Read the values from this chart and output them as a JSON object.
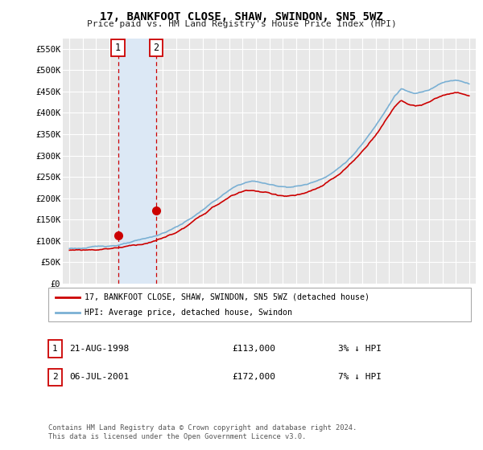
{
  "title": "17, BANKFOOT CLOSE, SHAW, SWINDON, SN5 5WZ",
  "subtitle": "Price paid vs. HM Land Registry's House Price Index (HPI)",
  "background_color": "#ffffff",
  "plot_bg_color": "#e8e8e8",
  "grid_color": "#ffffff",
  "hpi_color": "#7ab0d4",
  "price_color": "#cc0000",
  "shade_color": "#dce8f5",
  "purchases": [
    {
      "date_num": 1998.65,
      "price": 113000,
      "label": "1"
    },
    {
      "date_num": 2001.51,
      "price": 172000,
      "label": "2"
    }
  ],
  "legend_entries": [
    "17, BANKFOOT CLOSE, SHAW, SWINDON, SN5 5WZ (detached house)",
    "HPI: Average price, detached house, Swindon"
  ],
  "table_rows": [
    {
      "num": "1",
      "date": "21-AUG-1998",
      "price": "£113,000",
      "change": "3% ↓ HPI"
    },
    {
      "num": "2",
      "date": "06-JUL-2001",
      "price": "£172,000",
      "change": "7% ↓ HPI"
    }
  ],
  "footer": "Contains HM Land Registry data © Crown copyright and database right 2024.\nThis data is licensed under the Open Government Licence v3.0.",
  "ylim": [
    0,
    575000
  ],
  "xlim": [
    1994.5,
    2025.5
  ],
  "yticks": [
    0,
    50000,
    100000,
    150000,
    200000,
    250000,
    300000,
    350000,
    400000,
    450000,
    500000,
    550000
  ],
  "xticks": [
    1995,
    1996,
    1997,
    1998,
    1999,
    2000,
    2001,
    2002,
    2003,
    2004,
    2005,
    2006,
    2007,
    2008,
    2009,
    2010,
    2011,
    2012,
    2013,
    2014,
    2015,
    2016,
    2017,
    2018,
    2019,
    2020,
    2021,
    2022,
    2023,
    2024,
    2025
  ],
  "hpi_data": [
    82000,
    82500,
    83000,
    83800,
    85000,
    86500,
    88000,
    90000,
    92500,
    95000,
    98000,
    101000,
    105000,
    110000,
    116000,
    123000,
    131000,
    140000,
    150000,
    161000,
    173000,
    185000,
    196000,
    207000,
    217000,
    225000,
    231000,
    234000,
    232000,
    228000,
    224000,
    222000,
    221000,
    222000,
    224000,
    227000,
    232000,
    239000,
    248000,
    258000,
    270000,
    284000,
    300000,
    318000,
    338000,
    360000,
    385000,
    412000,
    438000,
    455000,
    448000,
    442000,
    445000,
    450000,
    460000,
    468000,
    472000,
    475000,
    472000,
    468000
  ],
  "prop_data": [
    78000,
    78500,
    79000,
    79800,
    81000,
    83000,
    85000,
    87000,
    90000,
    93000,
    96000,
    99000,
    103000,
    108000,
    113000,
    120000,
    127000,
    136000,
    146000,
    157000,
    169000,
    180000,
    190000,
    200000,
    209000,
    216000,
    221000,
    223000,
    220000,
    217000,
    213000,
    211000,
    210000,
    211000,
    213000,
    216000,
    221000,
    228000,
    237000,
    247000,
    258000,
    272000,
    287000,
    304000,
    323000,
    344000,
    367000,
    392000,
    416000,
    432000,
    424000,
    418000,
    420000,
    425000,
    434000,
    442000,
    445000,
    447000,
    444000,
    440000
  ]
}
